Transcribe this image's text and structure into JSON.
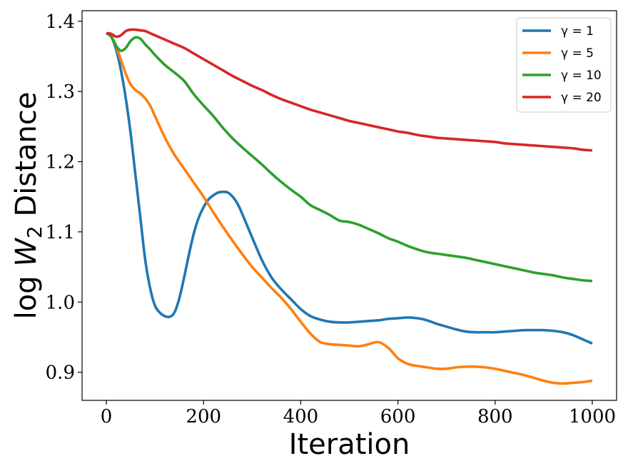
{
  "chart_data": {
    "type": "line",
    "title": "",
    "xlabel": "Iteration",
    "ylabel": "log W₂ Distance",
    "ylabel_parts": {
      "prefix": "log ",
      "var": "W",
      "sub": "2",
      "suffix": " Distance"
    },
    "xlim": [
      -50,
      1050
    ],
    "ylim": [
      0.86,
      1.415
    ],
    "xticks": [
      0,
      200,
      400,
      600,
      800,
      1000
    ],
    "yticks": [
      0.9,
      1.0,
      1.1,
      1.2,
      1.3,
      1.4
    ],
    "xtick_labels": [
      "0",
      "200",
      "400",
      "600",
      "800",
      "1000"
    ],
    "ytick_labels": [
      "0.9",
      "1.0",
      "1.1",
      "1.2",
      "1.3",
      "1.4"
    ],
    "grid": false,
    "legend_position": "top-right",
    "series": [
      {
        "name": "γ = 1",
        "gamma": "1",
        "color": "#1f77b4",
        "x": [
          0,
          10,
          20,
          30,
          40,
          50,
          60,
          70,
          80,
          90,
          100,
          110,
          120,
          130,
          140,
          150,
          160,
          170,
          180,
          190,
          200,
          210,
          220,
          230,
          240,
          250,
          260,
          270,
          280,
          300,
          320,
          340,
          360,
          380,
          400,
          420,
          440,
          460,
          480,
          500,
          520,
          540,
          560,
          580,
          600,
          620,
          640,
          660,
          680,
          700,
          720,
          740,
          760,
          780,
          800,
          820,
          840,
          860,
          880,
          900,
          920,
          940,
          960,
          980,
          1000
        ],
        "y": [
          1.383,
          1.378,
          1.36,
          1.33,
          1.29,
          1.24,
          1.18,
          1.12,
          1.06,
          1.02,
          0.995,
          0.985,
          0.98,
          0.979,
          0.985,
          1.005,
          1.035,
          1.068,
          1.098,
          1.12,
          1.135,
          1.146,
          1.152,
          1.156,
          1.157,
          1.156,
          1.15,
          1.14,
          1.125,
          1.092,
          1.06,
          1.035,
          1.018,
          1.004,
          0.99,
          0.98,
          0.975,
          0.972,
          0.971,
          0.971,
          0.972,
          0.973,
          0.974,
          0.976,
          0.977,
          0.978,
          0.977,
          0.974,
          0.969,
          0.965,
          0.961,
          0.958,
          0.957,
          0.957,
          0.957,
          0.958,
          0.959,
          0.96,
          0.96,
          0.96,
          0.959,
          0.957,
          0.953,
          0.947,
          0.941
        ]
      },
      {
        "name": "γ = 5",
        "gamma": "5",
        "color": "#ff7f0e",
        "x": [
          0,
          10,
          20,
          30,
          40,
          50,
          60,
          70,
          80,
          90,
          100,
          120,
          140,
          160,
          180,
          200,
          220,
          240,
          260,
          280,
          300,
          320,
          340,
          360,
          380,
          400,
          420,
          440,
          460,
          480,
          500,
          520,
          540,
          560,
          580,
          600,
          620,
          640,
          660,
          680,
          700,
          720,
          740,
          760,
          780,
          800,
          820,
          840,
          860,
          880,
          900,
          920,
          940,
          960,
          980,
          1000
        ],
        "y": [
          1.383,
          1.378,
          1.365,
          1.345,
          1.325,
          1.31,
          1.302,
          1.297,
          1.29,
          1.28,
          1.265,
          1.235,
          1.21,
          1.19,
          1.17,
          1.15,
          1.128,
          1.107,
          1.087,
          1.068,
          1.05,
          1.035,
          1.02,
          1.006,
          0.99,
          0.972,
          0.955,
          0.943,
          0.94,
          0.939,
          0.938,
          0.937,
          0.94,
          0.943,
          0.935,
          0.92,
          0.912,
          0.909,
          0.907,
          0.905,
          0.905,
          0.907,
          0.908,
          0.908,
          0.907,
          0.905,
          0.902,
          0.899,
          0.896,
          0.892,
          0.888,
          0.885,
          0.884,
          0.885,
          0.886,
          0.888
        ]
      },
      {
        "name": "γ = 10",
        "gamma": "10",
        "color": "#2ca02c",
        "x": [
          0,
          10,
          20,
          30,
          40,
          50,
          60,
          70,
          80,
          90,
          100,
          120,
          140,
          160,
          180,
          200,
          220,
          240,
          260,
          280,
          300,
          320,
          340,
          360,
          380,
          400,
          420,
          440,
          460,
          480,
          500,
          520,
          540,
          560,
          580,
          600,
          620,
          640,
          660,
          680,
          700,
          720,
          740,
          760,
          780,
          800,
          820,
          840,
          860,
          880,
          900,
          920,
          940,
          960,
          980,
          1000
        ],
        "y": [
          1.383,
          1.378,
          1.365,
          1.358,
          1.362,
          1.372,
          1.377,
          1.375,
          1.367,
          1.36,
          1.352,
          1.338,
          1.327,
          1.315,
          1.296,
          1.28,
          1.265,
          1.248,
          1.233,
          1.22,
          1.208,
          1.196,
          1.183,
          1.171,
          1.16,
          1.15,
          1.138,
          1.131,
          1.124,
          1.116,
          1.114,
          1.11,
          1.104,
          1.098,
          1.091,
          1.086,
          1.08,
          1.075,
          1.071,
          1.069,
          1.067,
          1.065,
          1.063,
          1.06,
          1.057,
          1.054,
          1.051,
          1.048,
          1.045,
          1.042,
          1.04,
          1.038,
          1.035,
          1.033,
          1.031,
          1.03
        ]
      },
      {
        "name": "γ = 20",
        "gamma": "20",
        "color": "#d62728",
        "x": [
          0,
          10,
          20,
          30,
          40,
          50,
          60,
          70,
          80,
          90,
          100,
          120,
          140,
          160,
          180,
          200,
          220,
          240,
          260,
          280,
          300,
          320,
          340,
          360,
          380,
          400,
          420,
          440,
          460,
          480,
          500,
          520,
          540,
          560,
          580,
          600,
          620,
          640,
          660,
          680,
          700,
          720,
          740,
          760,
          780,
          800,
          820,
          840,
          860,
          880,
          900,
          920,
          940,
          960,
          980,
          1000
        ],
        "y": [
          1.383,
          1.382,
          1.378,
          1.38,
          1.386,
          1.388,
          1.388,
          1.387,
          1.386,
          1.383,
          1.38,
          1.374,
          1.368,
          1.362,
          1.354,
          1.346,
          1.338,
          1.33,
          1.322,
          1.315,
          1.308,
          1.302,
          1.295,
          1.289,
          1.284,
          1.279,
          1.274,
          1.27,
          1.266,
          1.262,
          1.258,
          1.255,
          1.252,
          1.249,
          1.246,
          1.243,
          1.241,
          1.238,
          1.236,
          1.234,
          1.233,
          1.232,
          1.231,
          1.23,
          1.229,
          1.228,
          1.226,
          1.225,
          1.224,
          1.223,
          1.222,
          1.221,
          1.22,
          1.219,
          1.217,
          1.216
        ]
      }
    ]
  }
}
